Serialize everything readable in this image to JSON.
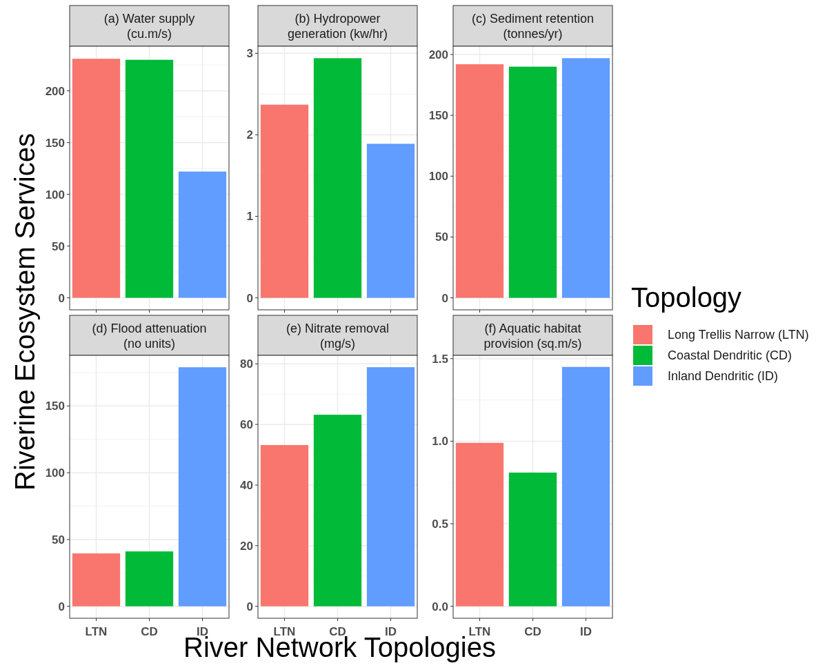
{
  "chart_data": [
    {
      "type": "bar",
      "title": "(a) Water supply\n(cu.m/s)",
      "ylabel": "Riverine Ecosystem Services",
      "categories": [
        null,
        null,
        null
      ],
      "series": [
        {
          "color": "#f8766d",
          "values": [
            231,
            null,
            null
          ]
        },
        {
          "color": "#00ba38",
          "values": [
            null,
            230,
            null
          ]
        },
        {
          "color": "#619cff",
          "values": [
            null,
            null,
            122
          ]
        }
      ],
      "ylim": [
        -11.6,
        243.1
      ],
      "yticks": [
        0,
        50,
        100,
        150,
        200
      ],
      "grid": true
    },
    {
      "type": "bar",
      "title": "(b) Hydropower\ngeneration (kw/hr)",
      "categories": [
        null,
        null,
        null
      ],
      "series": [
        {
          "color": "#f8766d",
          "values": [
            2.37,
            null,
            null
          ]
        },
        {
          "color": "#00ba38",
          "values": [
            null,
            2.94,
            null
          ]
        },
        {
          "color": "#619cff",
          "values": [
            null,
            null,
            1.89
          ]
        }
      ],
      "ylim": [
        -0.147,
        3.087
      ],
      "yticks": [
        0,
        1,
        2,
        3
      ],
      "grid": true
    },
    {
      "type": "bar",
      "title": "(c) Sediment retention\n(tonnes/yr)",
      "legend_title": "Topology",
      "legend": "right",
      "categories": [
        null,
        null,
        null
      ],
      "series": [
        {
          "name": "Long Trellis Narrow (LTN)",
          "color": "#f8766d",
          "values": [
            192,
            null,
            null
          ]
        },
        {
          "name": "Coastal Dendritic (CD)",
          "color": "#00ba38",
          "values": [
            null,
            190,
            null
          ]
        },
        {
          "name": "Inland Dendritic (ID)",
          "color": "#619cff",
          "values": [
            null,
            null,
            197
          ]
        }
      ],
      "ylim": [
        -9.85,
        206.8
      ],
      "yticks": [
        0,
        50,
        100,
        150,
        200
      ],
      "grid": true
    },
    {
      "type": "bar",
      "title": "(d) Flood attenuation\n(no units)",
      "categories": [
        "LTN",
        "CD",
        "ID"
      ],
      "series": [
        {
          "color": "#f8766d",
          "values": [
            39.6,
            null,
            null
          ]
        },
        {
          "color": "#00ba38",
          "values": [
            null,
            41.1,
            null
          ]
        },
        {
          "color": "#619cff",
          "values": [
            null,
            null,
            179
          ]
        }
      ],
      "ylim": [
        -8.95,
        187.9
      ],
      "yticks": [
        0,
        50,
        100,
        150
      ],
      "grid": true
    },
    {
      "type": "bar",
      "title": "(e) Nitrate removal\n(mg/s)",
      "xlabel": "River Network Topologies",
      "categories": [
        "LTN",
        "CD",
        "ID"
      ],
      "series": [
        {
          "color": "#f8766d",
          "values": [
            53.2,
            null,
            null
          ]
        },
        {
          "color": "#00ba38",
          "values": [
            null,
            63.2,
            null
          ]
        },
        {
          "color": "#619cff",
          "values": [
            null,
            null,
            78.9
          ]
        }
      ],
      "ylim": [
        -3.95,
        82.8
      ],
      "yticks": [
        0,
        20,
        40,
        60,
        80
      ],
      "grid": true
    },
    {
      "type": "bar",
      "title": "(f) Aquatic habitat\nprovision (sq.m/s)",
      "categories": [
        "LTN",
        "CD",
        "ID"
      ],
      "series": [
        {
          "color": "#f8766d",
          "values": [
            0.99,
            null,
            null
          ]
        },
        {
          "color": "#00ba38",
          "values": [
            null,
            0.81,
            null
          ]
        },
        {
          "color": "#619cff",
          "values": [
            null,
            null,
            1.45
          ]
        }
      ],
      "ylim": [
        -0.0725,
        1.52
      ],
      "yticks": [
        {
          "value": 0,
          "label": "0.0"
        },
        {
          "value": 0.5,
          "label": "0.5"
        },
        {
          "value": 1,
          "label": "1.0"
        },
        {
          "value": 1.5,
          "label": "1.5"
        }
      ],
      "grid": true
    }
  ]
}
